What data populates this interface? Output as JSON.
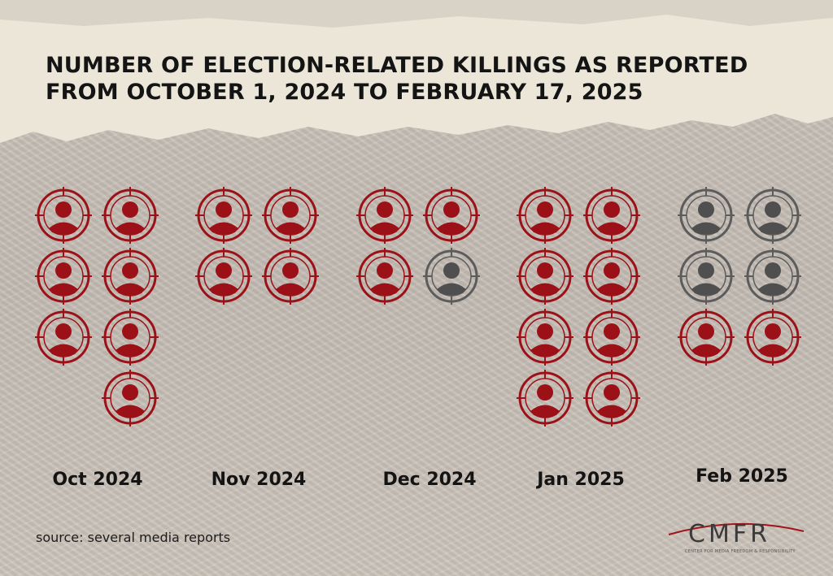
{
  "title": "NUMBER OF ELECTION-RELATED KILLINGS AS REPORTED FROM OCTOBER 1, 2024 TO FEBRUARY 17, 2025",
  "source": "source: several media reports",
  "logo": {
    "text": "CMFR",
    "subtitle": "CENTER FOR MEDIA FREEDOM & RESPONSIBILITY"
  },
  "colors": {
    "killed": "#9b1117",
    "other": "#4f4f4f",
    "ring_other": "#5c5c5c"
  },
  "icon": "person-in-crosshair-icon",
  "chart_data": {
    "type": "pictogram",
    "categories": [
      "Oct 2024",
      "Nov 2024",
      "Dec 2024",
      "Jan 2025",
      "Feb 2025"
    ],
    "series": [
      {
        "values": [
          7,
          4,
          3,
          8,
          2
        ]
      },
      {
        "values": [
          0,
          0,
          1,
          0,
          4
        ]
      }
    ]
  }
}
